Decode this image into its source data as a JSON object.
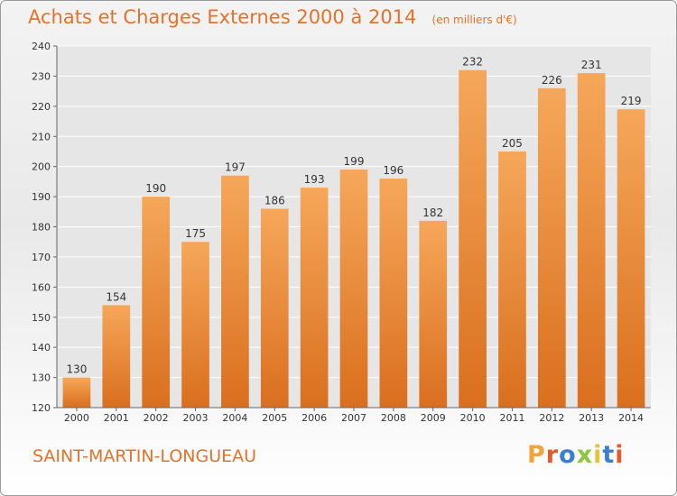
{
  "title": "Achats et Charges Externes 2000 à 2014",
  "unit": "(en milliers d'€)",
  "commune": "SAINT-MARTIN-LONGUEAU",
  "logo": {
    "chars": [
      "P",
      "r",
      "o",
      "x",
      "i",
      "t",
      "i"
    ],
    "colors": [
      "#f2a33a",
      "#e85a2c",
      "#3a7fd0",
      "#8cc63e",
      "#e8c23a",
      "#3a7fd0",
      "#e85a2c"
    ]
  },
  "colors": {
    "bar_light": "#f6a75a",
    "bar_dark": "#d96f1e",
    "title": "#e3722a"
  },
  "chart_data": {
    "type": "bar",
    "categories": [
      "2000",
      "2001",
      "2002",
      "2003",
      "2004",
      "2005",
      "2006",
      "2007",
      "2008",
      "2009",
      "2010",
      "2011",
      "2012",
      "2013",
      "2014"
    ],
    "values": [
      130,
      154,
      190,
      175,
      197,
      186,
      193,
      199,
      196,
      182,
      232,
      205,
      226,
      231,
      219
    ],
    "ylim": [
      120,
      240
    ],
    "yticks": [
      120,
      130,
      140,
      150,
      160,
      170,
      180,
      190,
      200,
      210,
      220,
      230,
      240
    ],
    "grid": true,
    "title": "Achats et Charges Externes 2000 à 2014",
    "xlabel": "",
    "ylabel": ""
  }
}
